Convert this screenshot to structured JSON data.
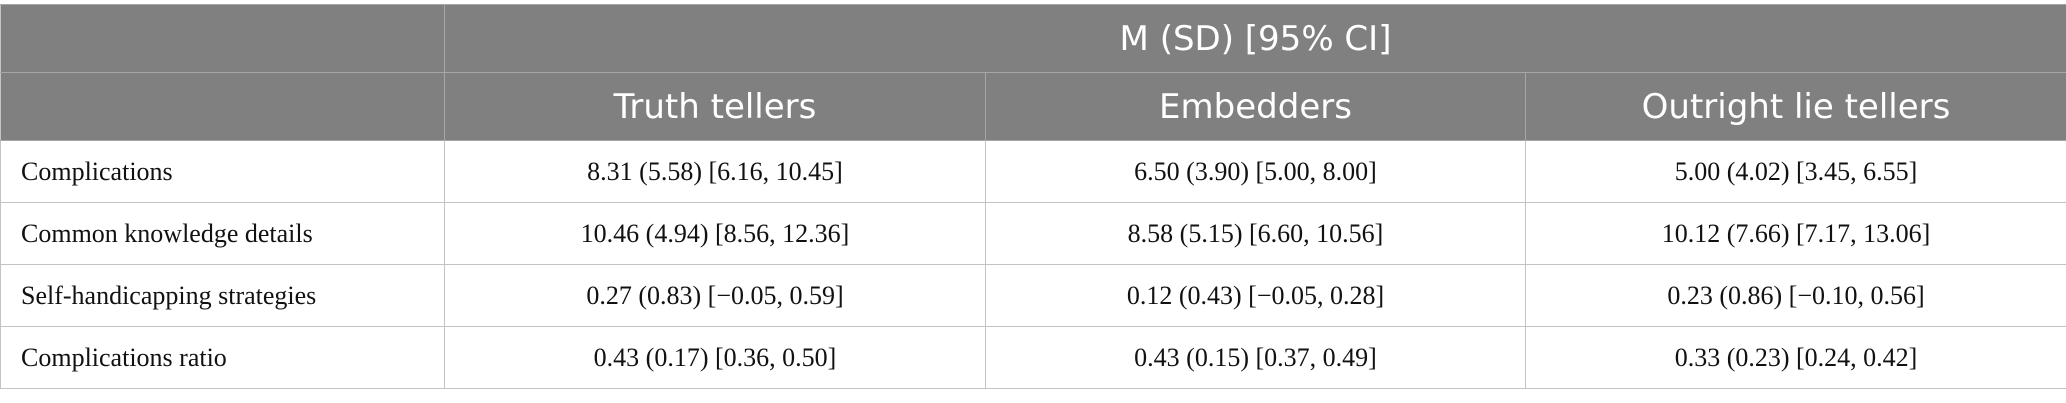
{
  "table": {
    "super_header": "M (SD) [95% CI]",
    "columns": [
      "Truth tellers",
      "Embedders",
      "Outright lie tellers"
    ],
    "rows": [
      {
        "label": "Complications",
        "values": [
          "8.31 (5.58) [6.16, 10.45]",
          "6.50 (3.90) [5.00, 8.00]",
          "5.00 (4.02) [3.45, 6.55]"
        ]
      },
      {
        "label": "Common knowledge details",
        "values": [
          "10.46 (4.94) [8.56, 12.36]",
          "8.58 (5.15) [6.60, 10.56]",
          "10.12 (7.66) [7.17, 13.06]"
        ]
      },
      {
        "label": "Self-handicapping strategies",
        "values": [
          "0.27 (0.83) [−0.05, 0.59]",
          "0.12 (0.43) [−0.05, 0.28]",
          "0.23 (0.86) [−0.10, 0.56]"
        ]
      },
      {
        "label": "Complications ratio",
        "values": [
          "0.43 (0.17) [0.36, 0.50]",
          "0.43 (0.15) [0.37, 0.49]",
          "0.33 (0.23) [0.24, 0.42]"
        ]
      }
    ]
  }
}
